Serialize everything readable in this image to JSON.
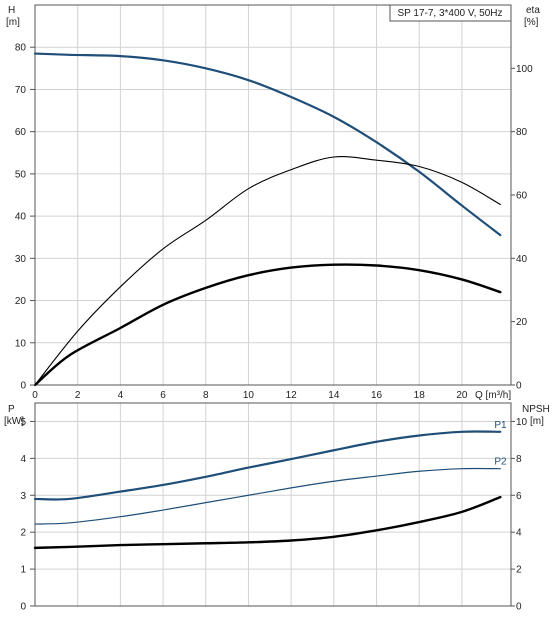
{
  "chart_data": [
    {
      "type": "line",
      "title": "SP 17-7, 3*400 V, 50Hz",
      "xlabel": "Q [m³/h]",
      "ylabel_left": [
        "H",
        "[m]"
      ],
      "ylabel_right": [
        "eta",
        "[%]"
      ],
      "x_ticks": [
        0,
        2,
        4,
        6,
        8,
        10,
        12,
        14,
        16,
        18,
        20
      ],
      "y_ticks_left": [
        0,
        10,
        20,
        30,
        40,
        50,
        60,
        70,
        80
      ],
      "y_ticks_right": [
        0,
        20,
        40,
        60,
        80,
        100
      ],
      "xlim": [
        0,
        22.3
      ],
      "ylim_left": [
        0,
        90
      ],
      "ylim_right": [
        0,
        120
      ],
      "grid": true,
      "series": [
        {
          "axis": "left",
          "color": "#1f4e79",
          "width": 2.2,
          "x": [
            0,
            1.6,
            4,
            6,
            8,
            10,
            12,
            14,
            16,
            18,
            20,
            21.8
          ],
          "y": [
            78.5,
            78.2,
            77.9,
            76.9,
            75.0,
            72.2,
            68.2,
            63.5,
            57.5,
            50.5,
            42.5,
            35.5
          ]
        },
        {
          "axis": "right",
          "color": "#000000",
          "width": 1.1,
          "x": [
            0,
            2,
            4,
            6,
            8,
            10,
            12,
            14,
            16,
            18,
            20,
            21.8
          ],
          "y": [
            0,
            17,
            31,
            43,
            52,
            62,
            68,
            72,
            71,
            69,
            64,
            57
          ]
        },
        {
          "axis": "left",
          "color": "#000000",
          "width": 2.4,
          "x": [
            0,
            1.6,
            4,
            6,
            8,
            10,
            12,
            14,
            16,
            18,
            20,
            21.8
          ],
          "y": [
            0,
            7,
            13.5,
            19,
            23,
            26,
            27.8,
            28.5,
            28.3,
            27.2,
            25.0,
            22.0
          ]
        }
      ]
    },
    {
      "type": "line",
      "xlabel": "",
      "ylabel_left": [
        "P",
        "[kW]"
      ],
      "ylabel_right": [
        "NPSH",
        "[m]"
      ],
      "y_ticks_left": [
        0,
        1,
        2,
        3,
        4,
        5
      ],
      "y_ticks_right": [
        0,
        2,
        4,
        6,
        8,
        10
      ],
      "xlim": [
        0,
        22.3
      ],
      "ylim_left": [
        0,
        5.5
      ],
      "ylim_right": [
        0,
        11
      ],
      "grid": true,
      "series": [
        {
          "name": "P1",
          "axis": "left",
          "color": "#1f4e79",
          "width": 2.2,
          "x": [
            0,
            1.6,
            4,
            6,
            8,
            10,
            12,
            14,
            16,
            18,
            20,
            21.8
          ],
          "y": [
            2.9,
            2.9,
            3.1,
            3.28,
            3.5,
            3.75,
            3.98,
            4.22,
            4.45,
            4.62,
            4.72,
            4.72
          ]
        },
        {
          "name": "P2",
          "axis": "left",
          "color": "#1f4e79",
          "width": 1.2,
          "x": [
            0,
            1.6,
            4,
            6,
            8,
            10,
            12,
            14,
            16,
            18,
            20,
            21.8
          ],
          "y": [
            2.22,
            2.25,
            2.42,
            2.6,
            2.8,
            3.0,
            3.2,
            3.38,
            3.52,
            3.65,
            3.72,
            3.72
          ]
        },
        {
          "axis": "right",
          "color": "#000000",
          "width": 2.4,
          "x": [
            0,
            1.6,
            4,
            6,
            8,
            10,
            12,
            14,
            16,
            18,
            20,
            21.8
          ],
          "y": [
            3.15,
            3.2,
            3.3,
            3.35,
            3.4,
            3.45,
            3.55,
            3.75,
            4.1,
            4.55,
            5.1,
            5.9
          ]
        }
      ]
    }
  ]
}
